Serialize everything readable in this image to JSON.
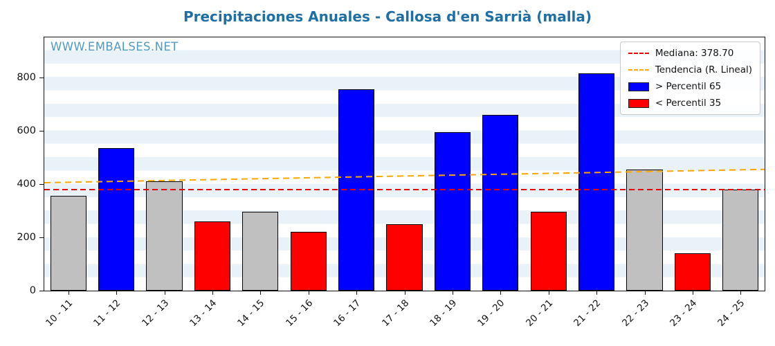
{
  "watermark": "WWW.EMBALSES.NET",
  "chart_data": {
    "type": "bar",
    "title": "Precipitaciones Anuales - Callosa d'en Sarrià (malla)",
    "xlabel": "",
    "ylabel": "",
    "ylim": [
      0,
      950
    ],
    "yticks": [
      0,
      200,
      400,
      600,
      800
    ],
    "categories": [
      "10 - 11",
      "11 - 12",
      "12 - 13",
      "13 - 14",
      "14 - 15",
      "15 - 16",
      "16 - 17",
      "17 - 18",
      "18 - 19",
      "19 - 20",
      "20 - 21",
      "21 - 22",
      "22 - 23",
      "23 - 24",
      "24 - 25"
    ],
    "values": [
      355,
      535,
      410,
      260,
      295,
      220,
      755,
      248,
      595,
      660,
      295,
      815,
      455,
      140,
      380
    ],
    "bar_classes": [
      "mid",
      "above",
      "mid",
      "below",
      "mid",
      "below",
      "above",
      "below",
      "above",
      "above",
      "below",
      "above",
      "mid",
      "below",
      "mid"
    ],
    "colors": {
      "above": "#0000ff",
      "below": "#ff0000",
      "mid": "#c0c0c0",
      "bar_edge": "#000000",
      "median_line": "#e60000",
      "trend_line": "#ffa500",
      "stripe": "#e9f2f8",
      "title": "#1f6fa5",
      "watermark": "#4c9bc7"
    },
    "median": 378.7,
    "trend": {
      "start": 405,
      "end": 455
    },
    "legend": [
      {
        "label": "Mediana: 378.70",
        "type": "dashed-line",
        "color": "#e60000"
      },
      {
        "label": "Tendencia (R. Lineal)",
        "type": "dashed-line",
        "color": "#ffa500"
      },
      {
        "label": "> Percentil 65",
        "type": "patch",
        "color": "#0000ff"
      },
      {
        "label": "< Percentil 35",
        "type": "patch",
        "color": "#ff0000"
      }
    ],
    "legend_position": "upper right",
    "grid": false
  }
}
